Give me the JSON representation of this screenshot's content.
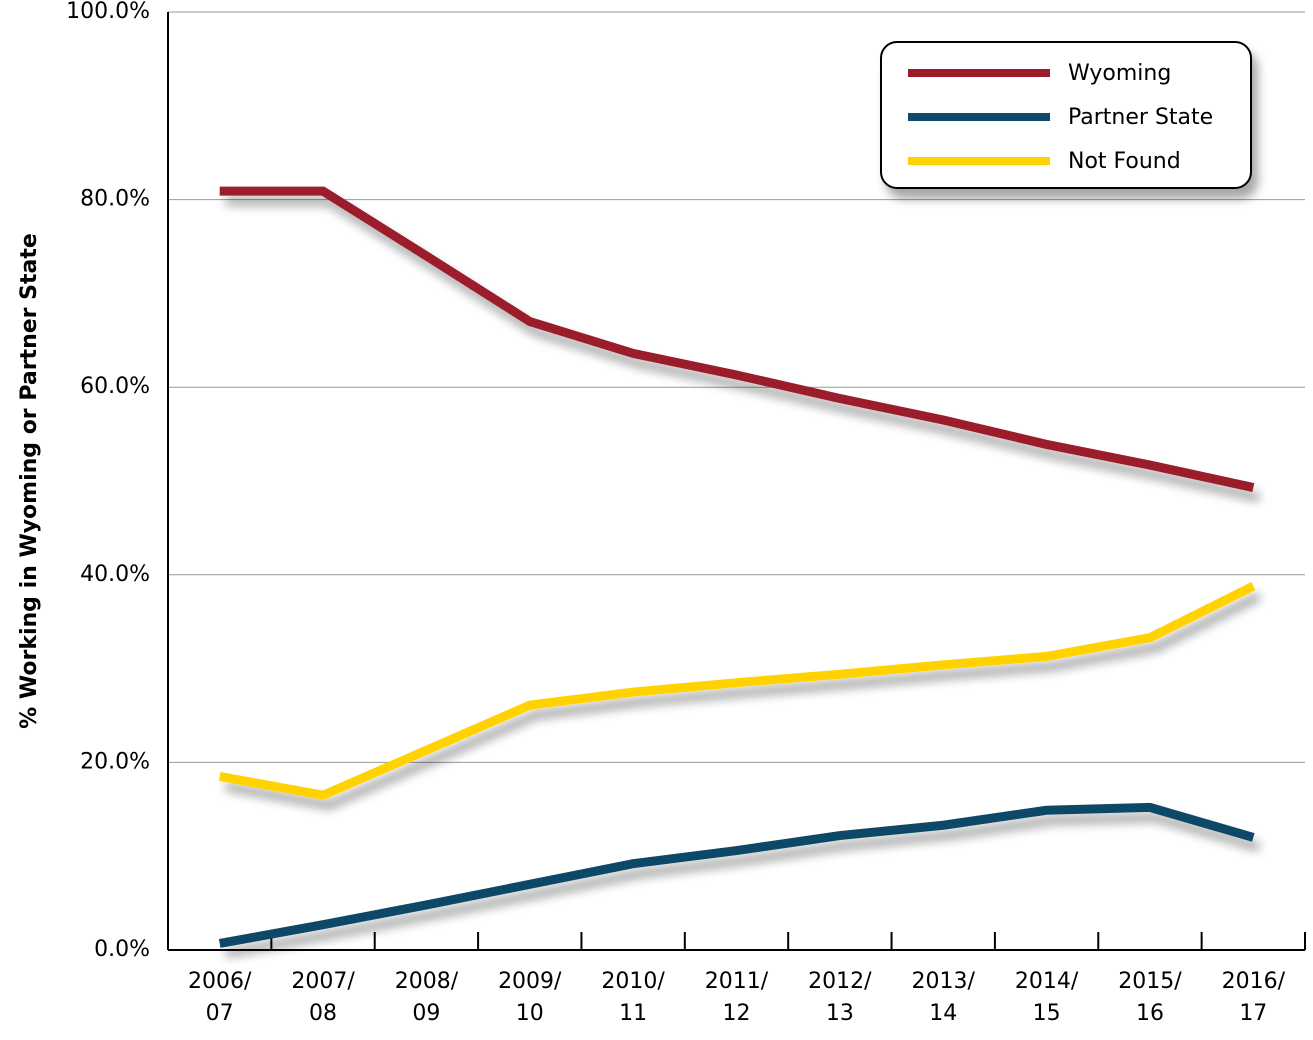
{
  "chart_data": {
    "type": "line",
    "ylabel": "% Working in Wyoming or Partner State",
    "categories": [
      "2006/\n07",
      "2007/\n08",
      "2008/\n09",
      "2009/\n10",
      "2010/\n11",
      "2011/\n12",
      "2012/\n13",
      "2013/\n14",
      "2014/\n15",
      "2015/\n16",
      "2016/\n17"
    ],
    "series": [
      {
        "name": "Wyoming",
        "color": "#9b1b2b",
        "values": [
          80.9,
          80.9,
          74.0,
          67.0,
          63.6,
          61.3,
          58.8,
          56.5,
          53.9,
          51.7,
          49.3
        ]
      },
      {
        "name": "Partner State",
        "color": "#0e4a66",
        "values": [
          0.7,
          2.7,
          4.8,
          7.0,
          9.2,
          10.6,
          12.2,
          13.3,
          14.9,
          15.2,
          12.0
        ]
      },
      {
        "name": "Not Found",
        "color": "#ffd200",
        "values": [
          18.5,
          16.5,
          21.3,
          26.1,
          27.5,
          28.5,
          29.4,
          30.4,
          31.3,
          33.3,
          38.8
        ]
      }
    ],
    "ylim": [
      0,
      100
    ],
    "yticks": [
      {
        "value": 0,
        "label": "0.0%"
      },
      {
        "value": 20,
        "label": "20.0%"
      },
      {
        "value": 40,
        "label": "40.0%"
      },
      {
        "value": 60,
        "label": "60.0%"
      },
      {
        "value": 80,
        "label": "80.0%"
      },
      {
        "value": 100,
        "label": "100.0%"
      }
    ],
    "grid": true,
    "legend": "upper right"
  }
}
